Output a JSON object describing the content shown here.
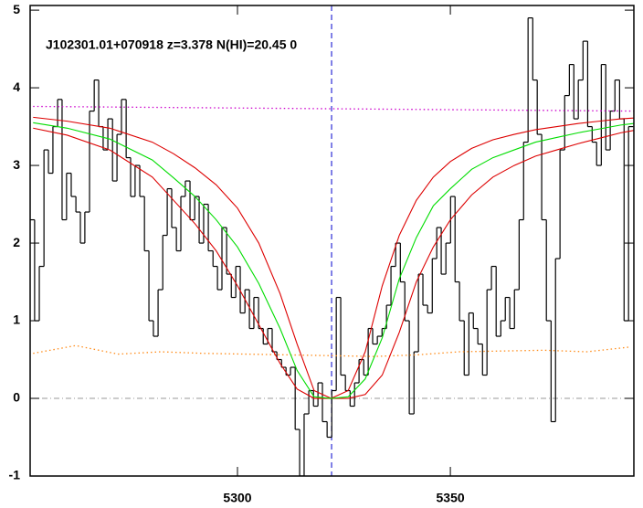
{
  "chart_data": {
    "type": "line",
    "title": "J102301.01+070918 z=3.378 N(HI)=20.45 0",
    "xlim": [
      5251.3,
      5393.1
    ],
    "ylim": [
      -1.0,
      5.06
    ],
    "xticks": [
      5300,
      5350
    ],
    "yticks": [
      -1,
      0,
      1,
      2,
      3,
      4,
      5
    ],
    "reference_lines": {
      "y": 0,
      "x": 5322.1
    },
    "series": [
      {
        "name": "flux",
        "style": "step",
        "color": "#000000",
        "x": [
          5251.8,
          5252.9,
          5254.0,
          5255.1,
          5256.1,
          5257.2,
          5258.3,
          5259.3,
          5260.4,
          5261.5,
          5262.6,
          5263.6,
          5264.7,
          5265.8,
          5266.9,
          5267.9,
          5269.0,
          5270.1,
          5271.2,
          5272.2,
          5273.3,
          5274.4,
          5275.4,
          5276.5,
          5277.6,
          5278.7,
          5279.7,
          5280.8,
          5281.9,
          5283.0,
          5284.0,
          5285.1,
          5286.2,
          5287.2,
          5288.3,
          5289.4,
          5290.5,
          5291.5,
          5292.6,
          5293.7,
          5294.8,
          5295.8,
          5296.9,
          5298.0,
          5299.1,
          5300.1,
          5301.2,
          5302.3,
          5303.3,
          5304.4,
          5305.5,
          5306.6,
          5307.6,
          5308.7,
          5309.8,
          5310.9,
          5311.9,
          5313.0,
          5314.1,
          5315.1,
          5316.2,
          5317.3,
          5318.4,
          5319.4,
          5320.5,
          5321.6,
          5322.7,
          5323.7,
          5324.8,
          5325.9,
          5327.0,
          5328.0,
          5329.1,
          5330.2,
          5331.2,
          5332.3,
          5333.4,
          5334.5,
          5335.5,
          5336.6,
          5337.7,
          5338.8,
          5339.8,
          5340.9,
          5342.0,
          5343.0,
          5344.1,
          5345.2,
          5346.3,
          5347.3,
          5348.4,
          5349.5,
          5350.6,
          5351.6,
          5352.7,
          5353.8,
          5354.9,
          5355.9,
          5357.0,
          5358.1,
          5359.1,
          5360.2,
          5361.3,
          5362.4,
          5363.4,
          5364.5,
          5365.6,
          5366.7,
          5367.7,
          5368.8,
          5369.9,
          5370.9,
          5372.0,
          5373.1,
          5374.2,
          5375.2,
          5376.3,
          5377.4,
          5378.5,
          5379.5,
          5380.6,
          5381.7,
          5382.8,
          5383.8,
          5384.9,
          5386.0,
          5387.0,
          5388.1,
          5389.2,
          5390.3,
          5391.3,
          5392.4
        ],
        "values": [
          2.3,
          1.0,
          1.7,
          3.2,
          2.9,
          3.5,
          3.85,
          2.3,
          2.9,
          2.6,
          2.4,
          2.0,
          2.4,
          3.7,
          4.1,
          3.5,
          3.2,
          3.6,
          2.8,
          3.4,
          3.85,
          3.1,
          2.6,
          3.0,
          2.6,
          1.9,
          1.0,
          0.8,
          1.4,
          2.1,
          2.7,
          2.2,
          1.9,
          2.6,
          2.8,
          2.3,
          2.6,
          2.0,
          2.5,
          1.9,
          1.7,
          1.4,
          2.2,
          1.6,
          1.3,
          1.7,
          1.1,
          1.4,
          0.9,
          1.3,
          0.9,
          0.7,
          0.9,
          0.6,
          0.5,
          0.4,
          0.3,
          0.4,
          -0.4,
          -1.0,
          -0.2,
          0.1,
          -0.1,
          0.2,
          -0.3,
          -0.5,
          0.1,
          1.3,
          0.3,
          0.1,
          -0.1,
          0.2,
          0.5,
          0.3,
          0.9,
          0.7,
          0.8,
          0.9,
          1.2,
          1.7,
          2.0,
          1.5,
          1.0,
          -0.2,
          0.6,
          1.6,
          1.2,
          1.1,
          1.8,
          2.2,
          1.6,
          2.0,
          2.6,
          1.5,
          1.0,
          0.3,
          1.1,
          0.9,
          0.7,
          0.3,
          1.4,
          1.7,
          0.8,
          1.0,
          1.3,
          0.9,
          1.4,
          2.3,
          3.3,
          4.9,
          4.1,
          3.4,
          2.3,
          1.0,
          -0.3,
          1.8,
          3.2,
          3.9,
          4.3,
          3.6,
          4.1,
          4.6,
          3.5,
          3.3,
          3.0,
          4.3,
          3.2,
          3.7,
          4.1,
          3.6,
          1.0,
          3.5
        ]
      },
      {
        "name": "error",
        "style": "dotted",
        "color": "#ff8c1a",
        "x": [
          5252,
          5262,
          5272,
          5282,
          5292,
          5302,
          5312,
          5322,
          5332,
          5342,
          5352,
          5362,
          5372,
          5382,
          5392
        ],
        "values": [
          0.58,
          0.68,
          0.57,
          0.6,
          0.58,
          0.57,
          0.56,
          0.55,
          0.54,
          0.56,
          0.6,
          0.61,
          0.62,
          0.6,
          0.66
        ]
      },
      {
        "name": "continuum",
        "style": "dotted",
        "color": "#cc00cc",
        "x": [
          5252,
          5393
        ],
        "values": [
          3.76,
          3.7
        ]
      },
      {
        "name": "fit-upper",
        "style": "solid",
        "color": "#dd0000",
        "x": [
          5252,
          5260,
          5270,
          5280,
          5285,
          5290,
          5295,
          5300,
          5305,
          5310,
          5314,
          5318,
          5322,
          5326,
          5330,
          5334,
          5338,
          5342,
          5346,
          5350,
          5355,
          5360,
          5365,
          5370,
          5375,
          5380,
          5385,
          5390,
          5393
        ],
        "values": [
          3.62,
          3.57,
          3.48,
          3.3,
          3.15,
          2.97,
          2.75,
          2.45,
          2.0,
          1.35,
          0.7,
          0.1,
          0,
          0.1,
          0.6,
          1.45,
          2.1,
          2.55,
          2.85,
          3.05,
          3.22,
          3.33,
          3.4,
          3.46,
          3.5,
          3.54,
          3.57,
          3.6,
          3.61
        ]
      },
      {
        "name": "fit-lower",
        "style": "solid",
        "color": "#dd0000",
        "x": [
          5252,
          5260,
          5270,
          5280,
          5285,
          5290,
          5295,
          5300,
          5305,
          5310,
          5314,
          5318,
          5322,
          5326,
          5330,
          5334,
          5338,
          5342,
          5346,
          5350,
          5355,
          5360,
          5365,
          5370,
          5375,
          5380,
          5385,
          5390,
          5393
        ],
        "values": [
          3.48,
          3.39,
          3.2,
          2.85,
          2.55,
          2.25,
          1.9,
          1.45,
          0.95,
          0.45,
          0.12,
          0,
          0,
          0,
          0.05,
          0.3,
          0.85,
          1.5,
          1.95,
          2.3,
          2.62,
          2.85,
          3.0,
          3.12,
          3.2,
          3.28,
          3.35,
          3.42,
          3.45
        ]
      },
      {
        "name": "fit",
        "style": "solid",
        "color": "#00dd00",
        "x": [
          5252,
          5260,
          5270,
          5280,
          5285,
          5290,
          5295,
          5300,
          5305,
          5310,
          5314,
          5318,
          5322,
          5326,
          5330,
          5334,
          5338,
          5342,
          5346,
          5350,
          5355,
          5360,
          5365,
          5370,
          5375,
          5380,
          5385,
          5390,
          5393
        ],
        "values": [
          3.55,
          3.48,
          3.34,
          3.07,
          2.84,
          2.6,
          2.3,
          1.95,
          1.48,
          0.9,
          0.36,
          0.02,
          0,
          0.02,
          0.25,
          0.78,
          1.54,
          2.07,
          2.48,
          2.7,
          2.95,
          3.1,
          3.2,
          3.3,
          3.36,
          3.42,
          3.47,
          3.52,
          3.54
        ]
      }
    ]
  }
}
